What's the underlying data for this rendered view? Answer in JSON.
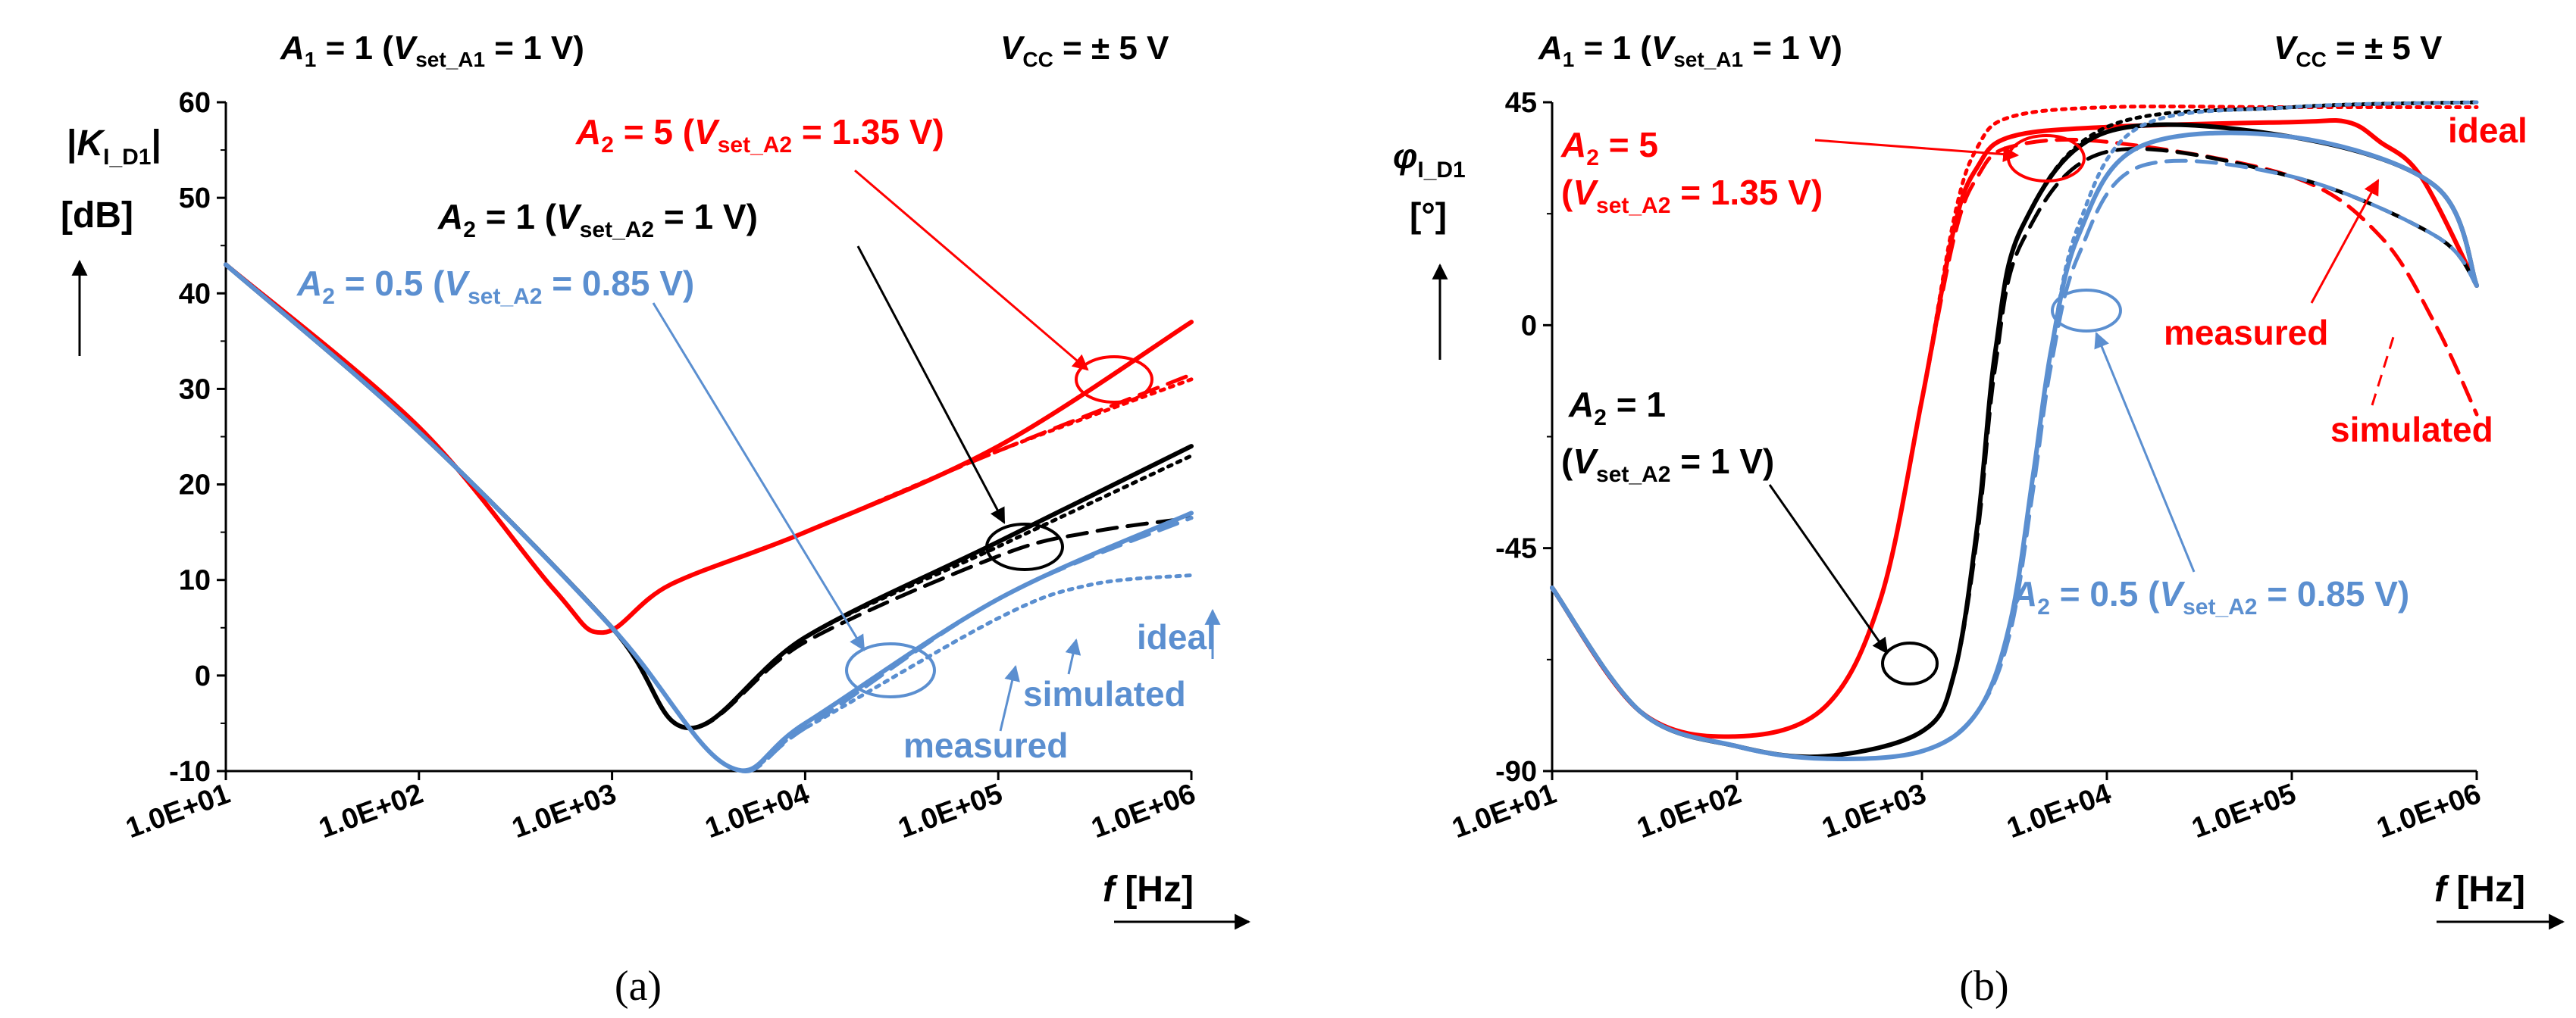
{
  "colors": {
    "red": "#ff0000",
    "black": "#000000",
    "blue": "#5b8fd0"
  },
  "panel_labels": [
    "(a)",
    "(b)"
  ],
  "chart_data": [
    {
      "type": "line",
      "panel": "(a)",
      "title_left": {
        "a": "A",
        "asub": "1",
        "mid": " = 1 (",
        "v": "V",
        "vsub": "set_A1",
        "tail": " = 1 V)"
      },
      "title_right": {
        "v": "V",
        "vsub": "CC",
        "tail": " = ± 5 V"
      },
      "ylabel": {
        "l1a": "|",
        "l1b": "K",
        "l1sub": "I_D1",
        "l1c": "|",
        "l2": "[dB]"
      },
      "xlabel": {
        "f": "f",
        "unit": " [Hz]"
      },
      "x_scale": "log",
      "xlim": [
        10,
        1000000
      ],
      "ylim": [
        -10,
        60
      ],
      "xticks": [
        "1.0E+01",
        "1.0E+02",
        "1.0E+03",
        "1.0E+04",
        "1.0E+05",
        "1.0E+06"
      ],
      "yticks": [
        "-10",
        "0",
        "10",
        "20",
        "30",
        "40",
        "50",
        "60"
      ],
      "annotations": {
        "a2_5": {
          "a": "A",
          "asub": "2",
          "mid": " = 5 (",
          "v": "V",
          "vsub": "set_A2",
          "tail": " = 1.35 V)"
        },
        "a2_1": {
          "a": "A",
          "asub": "2",
          "mid": " = 1 (",
          "v": "V",
          "vsub": "set_A2",
          "tail": " = 1 V)"
        },
        "a2_05": {
          "a": "A",
          "asub": "2",
          "mid": " = 0.5 (",
          "v": "V",
          "vsub": "set_A2",
          "tail": " = 0.85 V)"
        },
        "ideal": "ideal",
        "simulated": "simulated",
        "measured": "measured"
      },
      "series": [
        {
          "group": "A2=5",
          "style": "measured",
          "color": "#ff0000",
          "x": [
            10,
            100,
            500,
            900,
            2000,
            10000,
            100000,
            1000000
          ],
          "y": [
            43,
            26,
            9,
            4.5,
            9.5,
            15,
            24,
            37
          ]
        },
        {
          "group": "A2=5",
          "style": "simulated",
          "color": "#ff0000",
          "x": [
            10,
            100,
            500,
            900,
            2000,
            10000,
            100000,
            1000000
          ],
          "y": [
            43,
            26,
            9,
            4.5,
            9.5,
            15,
            23.5,
            31.5
          ]
        },
        {
          "group": "A2=5",
          "style": "ideal",
          "color": "#ff0000",
          "x": [
            10,
            100,
            500,
            900,
            2000,
            10000,
            100000,
            1000000
          ],
          "y": [
            43,
            26,
            9,
            4.5,
            9.5,
            15,
            23.5,
            31
          ]
        },
        {
          "group": "A2=1",
          "style": "measured",
          "color": "#000000",
          "x": [
            10,
            100,
            1000,
            2500,
            10000,
            100000,
            1000000
          ],
          "y": [
            43,
            25.5,
            5,
            -5.5,
            4,
            14,
            24
          ]
        },
        {
          "group": "A2=1",
          "style": "simulated",
          "color": "#000000",
          "x": [
            10,
            100,
            1000,
            2500,
            10000,
            100000,
            300000,
            1000000
          ],
          "y": [
            43,
            25.5,
            5,
            -5.5,
            3.5,
            12.5,
            15,
            16.5
          ]
        },
        {
          "group": "A2=1",
          "style": "ideal",
          "color": "#000000",
          "x": [
            10,
            100,
            1000,
            2500,
            10000,
            100000,
            1000000
          ],
          "y": [
            43,
            25.5,
            5,
            -5.5,
            4,
            13.5,
            23
          ]
        },
        {
          "group": "A2=0.5",
          "style": "measured",
          "color": "#5b8fd0",
          "x": [
            10,
            100,
            1000,
            4000,
            10000,
            100000,
            1000000
          ],
          "y": [
            43,
            25.5,
            5,
            -9.5,
            -5,
            8,
            17
          ]
        },
        {
          "group": "A2=0.5",
          "style": "simulated",
          "color": "#5b8fd0",
          "x": [
            10,
            100,
            1000,
            4000,
            10000,
            100000,
            1000000
          ],
          "y": [
            43,
            25.5,
            5,
            -9.5,
            -5.5,
            8,
            16.5
          ]
        },
        {
          "group": "A2=0.5",
          "style": "ideal",
          "color": "#5b8fd0",
          "x": [
            10,
            100,
            1000,
            4000,
            10000,
            100000,
            300000,
            1000000
          ],
          "y": [
            43,
            25.5,
            5,
            -9.5,
            -5.5,
            6,
            9.5,
            10.5
          ]
        }
      ]
    },
    {
      "type": "line",
      "panel": "(b)",
      "title_left": {
        "a": "A",
        "asub": "1",
        "mid": " = 1 (",
        "v": "V",
        "vsub": "set_A1",
        "tail": " = 1 V)"
      },
      "title_right": {
        "v": "V",
        "vsub": "CC",
        "tail": " = ± 5 V"
      },
      "ylabel": {
        "l1a": "φ",
        "l1sub": "I_D1",
        "l2": "[°]"
      },
      "xlabel": {
        "f": "f",
        "unit": " [Hz]"
      },
      "x_scale": "log",
      "xlim": [
        10,
        1000000
      ],
      "ylim": [
        -90,
        45
      ],
      "xticks": [
        "1.0E+01",
        "1.0E+02",
        "1.0E+03",
        "1.0E+04",
        "1.0E+05",
        "1.0E+06"
      ],
      "yticks": [
        "-90",
        "-45",
        "0",
        "45"
      ],
      "annotations": {
        "a2_5_l1": {
          "a": "A",
          "asub": "2",
          "tail": " = 5"
        },
        "a2_5_l2": {
          "pre": "(",
          "v": "V",
          "vsub": "set_A2",
          "tail": " = 1.35 V)"
        },
        "a2_1_l1": {
          "a": "A",
          "asub": "2",
          "tail": " = 1"
        },
        "a2_1_l2": {
          "pre": "(",
          "v": "V",
          "vsub": "set_A2",
          "tail": " = 1 V)"
        },
        "a2_05": {
          "a": "A",
          "asub": "2",
          "mid": " = 0.5 (",
          "v": "V",
          "vsub": "set_A2",
          "tail": " = 0.85 V)"
        },
        "ideal": "ideal",
        "measured": "measured",
        "simulated": "simulated"
      },
      "series": [
        {
          "group": "A2=5",
          "style": "measured",
          "color": "#ff0000",
          "x": [
            10,
            30,
            100,
            300,
            600,
            1000,
            1500,
            2000,
            3000,
            10000,
            100000,
            200000,
            300000,
            500000,
            1000000
          ],
          "y": [
            -53,
            -78,
            -83,
            -77,
            -55,
            -15,
            20,
            32,
            38,
            40,
            41,
            41,
            37,
            30,
            8
          ]
        },
        {
          "group": "A2=5",
          "style": "simulated",
          "color": "#ff0000",
          "x": [
            10,
            30,
            100,
            300,
            600,
            1000,
            1500,
            2000,
            3000,
            10000,
            100000,
            300000,
            600000,
            1000000
          ],
          "y": [
            -53,
            -78,
            -83,
            -77,
            -55,
            -15,
            18,
            30,
            36,
            37,
            30,
            18,
            0,
            -18
          ]
        },
        {
          "group": "A2=5",
          "style": "ideal",
          "color": "#ff0000",
          "x": [
            10,
            30,
            100,
            300,
            600,
            1000,
            1500,
            2000,
            3000,
            10000,
            100000,
            1000000
          ],
          "y": [
            -53,
            -78,
            -83,
            -77,
            -55,
            -15,
            22,
            36,
            42,
            44,
            44,
            44
          ]
        },
        {
          "group": "A2=1",
          "style": "measured",
          "color": "#000000",
          "x": [
            10,
            30,
            100,
            300,
            1000,
            1500,
            2000,
            2500,
            3500,
            10000,
            100000,
            600000,
            1000000
          ],
          "y": [
            -53,
            -78,
            -85,
            -87,
            -82,
            -70,
            -40,
            -5,
            20,
            39,
            38,
            28,
            8
          ]
        },
        {
          "group": "A2=1",
          "style": "simulated",
          "color": "#000000",
          "x": [
            10,
            30,
            100,
            300,
            1000,
            1500,
            2000,
            2500,
            3500,
            10000,
            100000,
            600000,
            1000000
          ],
          "y": [
            -53,
            -78,
            -85,
            -87,
            -82,
            -70,
            -42,
            -8,
            17,
            35,
            30,
            18,
            8
          ]
        },
        {
          "group": "A2=1",
          "style": "ideal",
          "color": "#000000",
          "x": [
            10,
            30,
            100,
            300,
            1000,
            1500,
            2000,
            2500,
            3500,
            10000,
            100000,
            1000000
          ],
          "y": [
            -53,
            -78,
            -85,
            -87,
            -82,
            -70,
            -40,
            -5,
            20,
            40,
            44,
            45
          ]
        },
        {
          "group": "A2=0.5",
          "style": "measured",
          "color": "#5b8fd0",
          "x": [
            10,
            30,
            100,
            300,
            1000,
            2000,
            3000,
            4000,
            5000,
            7000,
            15000,
            100000,
            600000,
            1000000
          ],
          "y": [
            -53,
            -78,
            -85,
            -87.5,
            -86,
            -78,
            -60,
            -30,
            -5,
            18,
            36,
            38,
            28,
            8
          ]
        },
        {
          "group": "A2=0.5",
          "style": "simulated",
          "color": "#5b8fd0",
          "x": [
            10,
            30,
            100,
            300,
            1000,
            2000,
            3000,
            4000,
            5000,
            7000,
            15000,
            100000,
            600000,
            1000000
          ],
          "y": [
            -53,
            -78,
            -85,
            -87.5,
            -86,
            -78,
            -62,
            -33,
            -8,
            14,
            32,
            30,
            18,
            8
          ]
        },
        {
          "group": "A2=0.5",
          "style": "ideal",
          "color": "#5b8fd0",
          "x": [
            10,
            30,
            100,
            300,
            1000,
            2000,
            3000,
            4000,
            5000,
            7000,
            15000,
            100000,
            1000000
          ],
          "y": [
            -53,
            -78,
            -85,
            -87.5,
            -86,
            -78,
            -60,
            -30,
            -5,
            20,
            40,
            44,
            45
          ]
        }
      ]
    }
  ]
}
